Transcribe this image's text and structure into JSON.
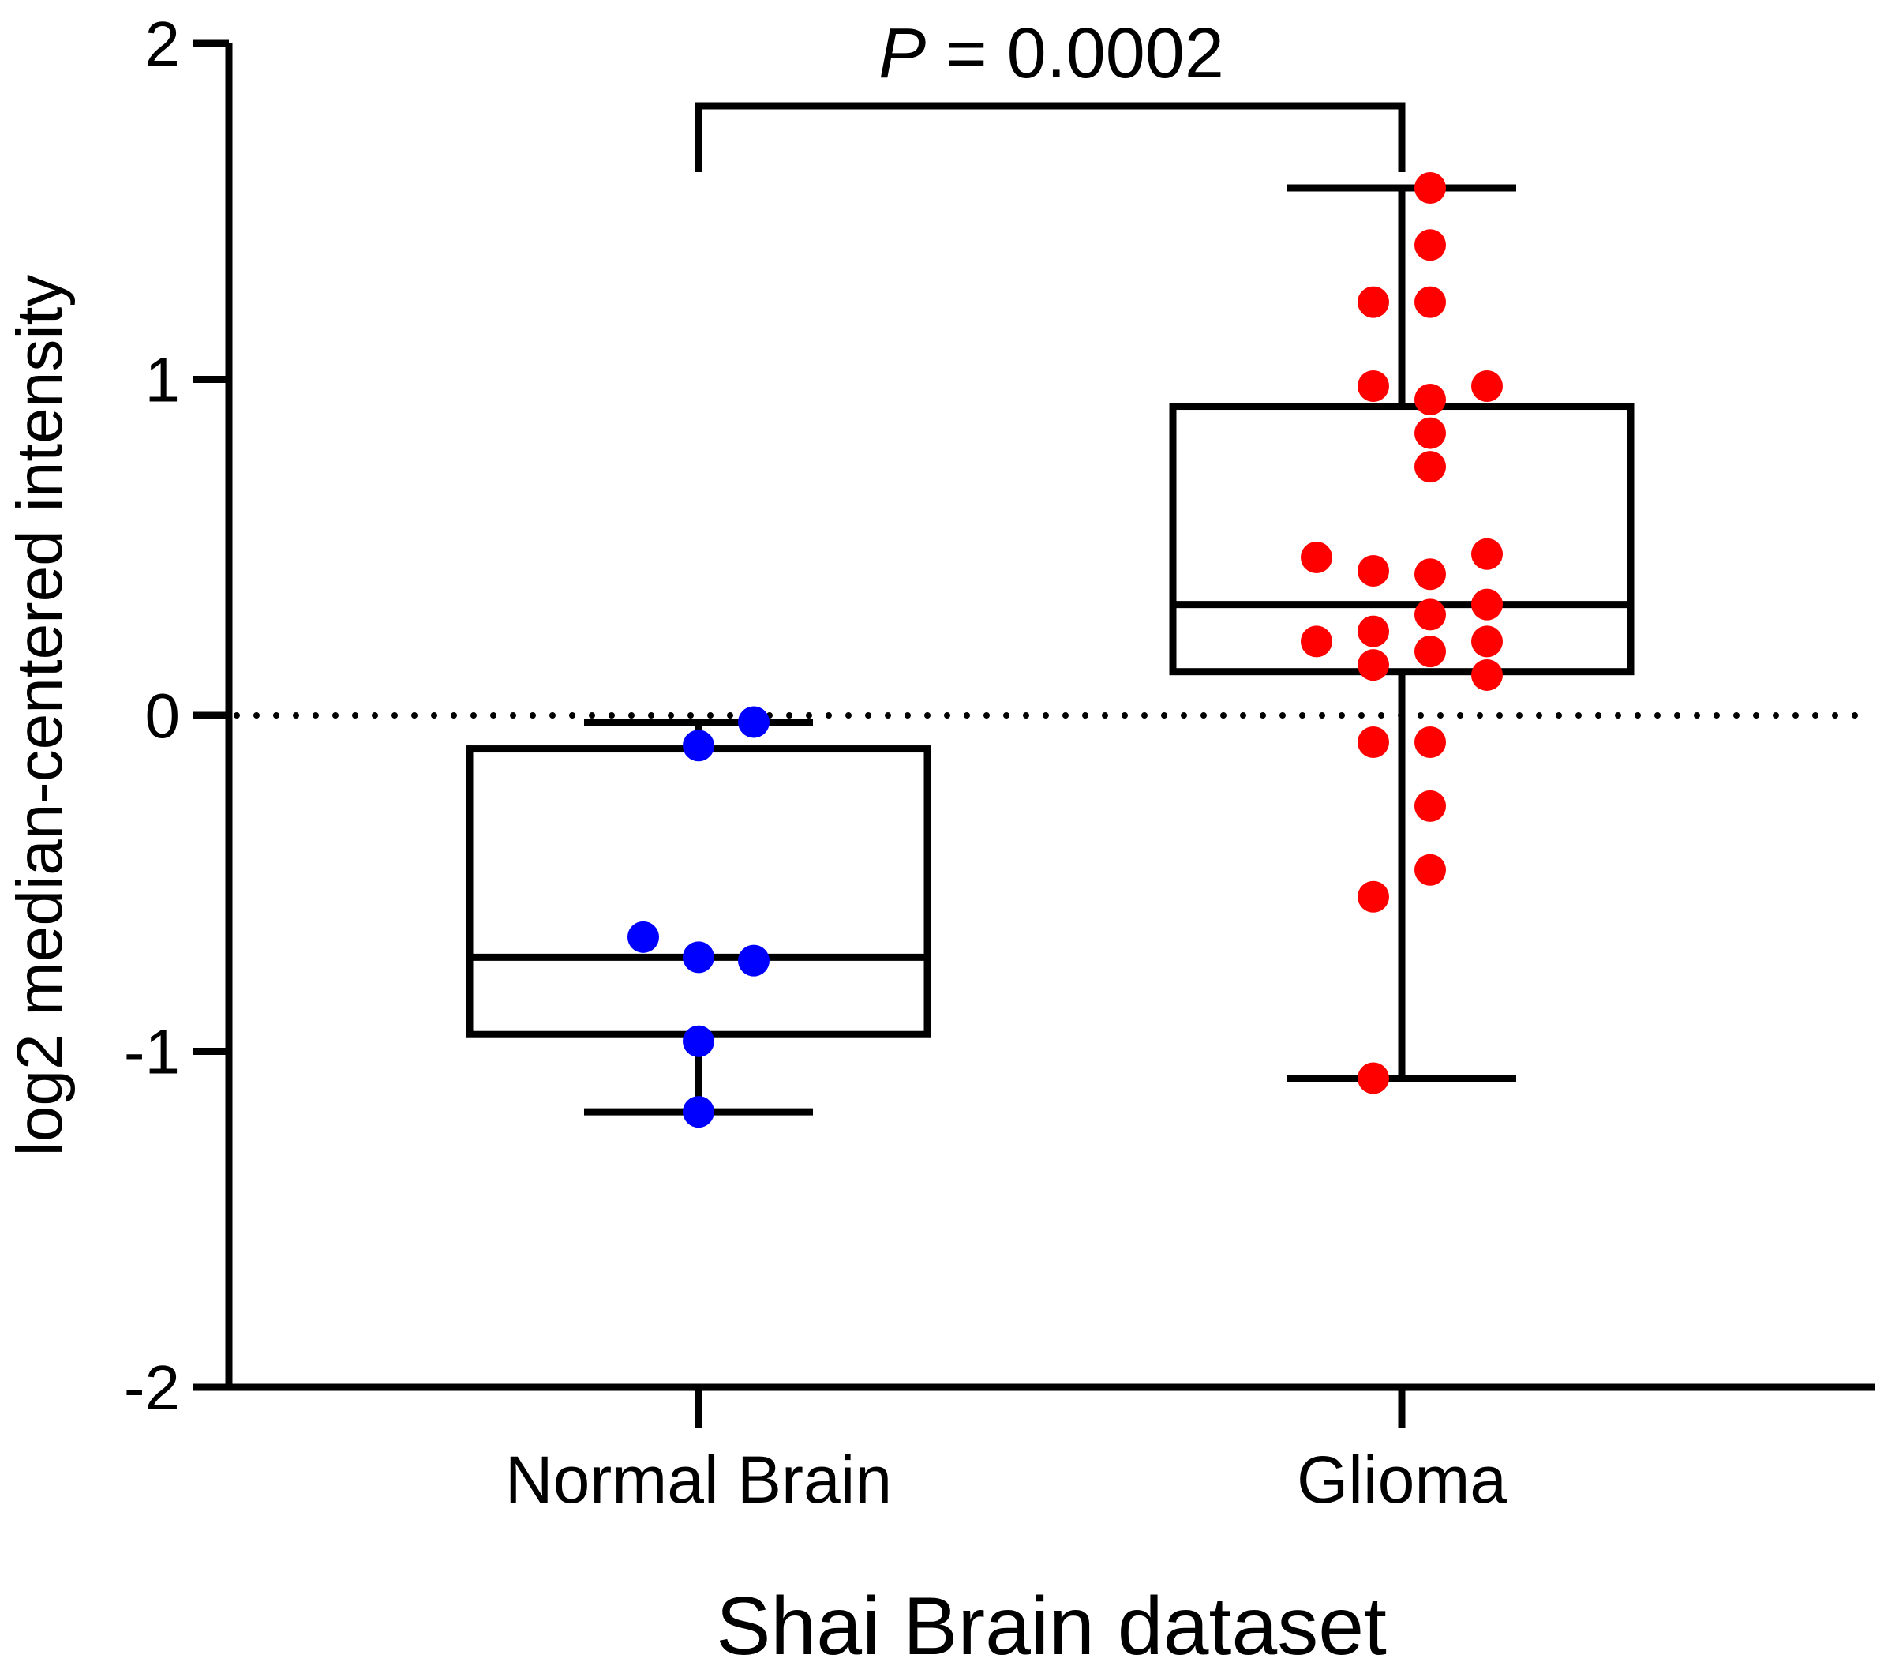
{
  "chart_data": {
    "type": "box",
    "xlabel": "Shai Brain dataset",
    "ylabel": "log2 median-centered intensity",
    "ylim": [
      -2,
      2
    ],
    "yticks": [
      -2,
      -1,
      0,
      1,
      2
    ],
    "yticklabels": [
      "-2",
      "-1",
      "0",
      "1",
      "2"
    ],
    "categories": [
      "Normal Brain",
      "Glioma"
    ],
    "reference_line": {
      "y": 0,
      "style": "dotted"
    },
    "boxes": [
      {
        "category": "Normal Brain",
        "whisker_low": -1.18,
        "q1": -0.95,
        "median": -0.72,
        "q3": -0.1,
        "whisker_high": -0.02,
        "color": "#0000ff"
      },
      {
        "category": "Glioma",
        "whisker_low": -1.08,
        "q1": 0.13,
        "median": 0.33,
        "q3": 0.92,
        "whisker_high": 1.57,
        "color": "#ff0000"
      }
    ],
    "points": [
      {
        "category": "Normal Brain",
        "values": [
          -0.02,
          -0.09,
          -0.66,
          -0.73,
          -0.72,
          -0.97,
          -1.18
        ]
      },
      {
        "category": "Glioma",
        "values": [
          1.57,
          1.4,
          1.23,
          1.23,
          0.98,
          0.98,
          0.94,
          0.84,
          0.74,
          0.47,
          0.48,
          0.43,
          0.42,
          0.33,
          0.3,
          0.25,
          0.22,
          0.22,
          0.19,
          0.15,
          0.12,
          -0.08,
          -0.08,
          -0.27,
          -0.46,
          -0.54,
          -1.08
        ]
      }
    ],
    "significance": {
      "between": [
        "Normal Brain",
        "Glioma"
      ],
      "p_symbol": "P",
      "p_text": " = 0.0002"
    }
  }
}
